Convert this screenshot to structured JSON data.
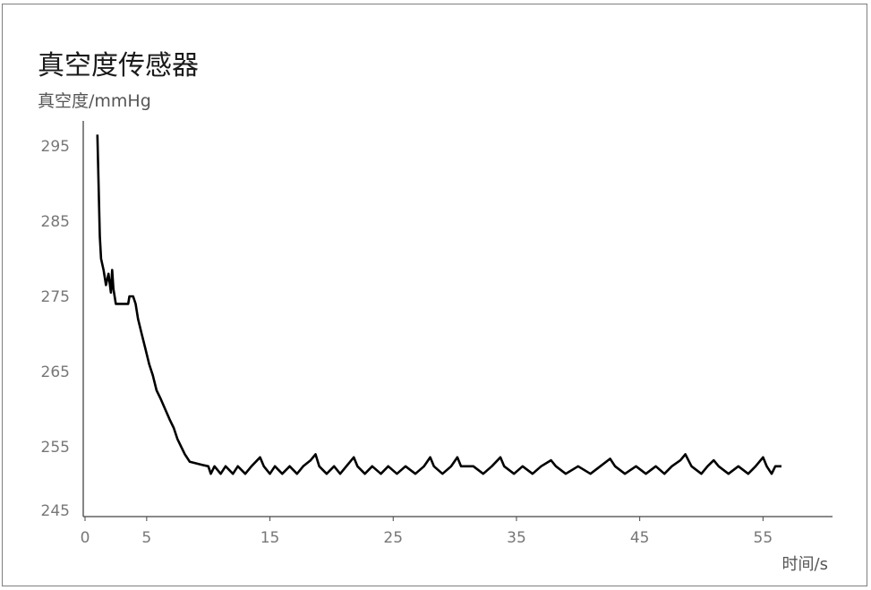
{
  "chart_data": {
    "type": "line",
    "title": "真空度传感器",
    "ylabel": "真空度/mmHg",
    "xlabel": "时间/s",
    "xlim": [
      0,
      60
    ],
    "ylim": [
      245,
      297
    ],
    "x_ticks": [
      0,
      5,
      15,
      25,
      35,
      45,
      55
    ],
    "y_ticks": [
      245,
      255,
      265,
      275,
      285,
      295
    ],
    "grid": false,
    "series": [
      {
        "color": "#000000",
        "points": [
          [
            1.0,
            296.5
          ],
          [
            1.1,
            290
          ],
          [
            1.2,
            283
          ],
          [
            1.3,
            280
          ],
          [
            1.5,
            278.5
          ],
          [
            1.7,
            276.5
          ],
          [
            1.9,
            278
          ],
          [
            2.1,
            275.5
          ],
          [
            2.2,
            278.5
          ],
          [
            2.3,
            276
          ],
          [
            2.5,
            274
          ],
          [
            3.0,
            274
          ],
          [
            3.5,
            274
          ],
          [
            3.6,
            275
          ],
          [
            3.9,
            275
          ],
          [
            4.1,
            274
          ],
          [
            4.3,
            272
          ],
          [
            4.6,
            270
          ],
          [
            4.9,
            268
          ],
          [
            5.2,
            266
          ],
          [
            5.5,
            264.5
          ],
          [
            5.8,
            262.5
          ],
          [
            6.1,
            261.5
          ],
          [
            6.5,
            260
          ],
          [
            6.9,
            258.5
          ],
          [
            7.2,
            257.5
          ],
          [
            7.5,
            256
          ],
          [
            7.8,
            255
          ],
          [
            8.1,
            254
          ],
          [
            8.5,
            253
          ],
          [
            9.0,
            252.8
          ],
          [
            9.5,
            252.6
          ],
          [
            10.0,
            252.4
          ],
          [
            10.2,
            251.4
          ],
          [
            10.5,
            252.4
          ],
          [
            11.0,
            251.4
          ],
          [
            11.4,
            252.4
          ],
          [
            12.0,
            251.4
          ],
          [
            12.4,
            252.4
          ],
          [
            13.0,
            251.4
          ],
          [
            13.5,
            252.4
          ],
          [
            14.2,
            253.6
          ],
          [
            14.5,
            252.4
          ],
          [
            15.0,
            251.4
          ],
          [
            15.4,
            252.4
          ],
          [
            16.0,
            251.4
          ],
          [
            16.6,
            252.4
          ],
          [
            17.2,
            251.4
          ],
          [
            17.7,
            252.4
          ],
          [
            18.3,
            253.2
          ],
          [
            18.7,
            254
          ],
          [
            19.0,
            252.4
          ],
          [
            19.6,
            251.4
          ],
          [
            20.2,
            252.4
          ],
          [
            20.7,
            251.4
          ],
          [
            21.2,
            252.4
          ],
          [
            21.8,
            253.6
          ],
          [
            22.1,
            252.4
          ],
          [
            22.7,
            251.4
          ],
          [
            23.3,
            252.4
          ],
          [
            24.0,
            251.4
          ],
          [
            24.6,
            252.4
          ],
          [
            25.3,
            251.4
          ],
          [
            26.0,
            252.4
          ],
          [
            26.8,
            251.4
          ],
          [
            27.5,
            252.4
          ],
          [
            28.0,
            253.6
          ],
          [
            28.3,
            252.4
          ],
          [
            29.0,
            251.4
          ],
          [
            29.7,
            252.4
          ],
          [
            30.2,
            253.6
          ],
          [
            30.5,
            252.4
          ],
          [
            31.5,
            252.4
          ],
          [
            32.3,
            251.4
          ],
          [
            33.0,
            252.4
          ],
          [
            33.7,
            253.6
          ],
          [
            34.0,
            252.4
          ],
          [
            34.8,
            251.4
          ],
          [
            35.5,
            252.4
          ],
          [
            36.3,
            251.4
          ],
          [
            37.0,
            252.4
          ],
          [
            37.8,
            253.2
          ],
          [
            38.2,
            252.4
          ],
          [
            39.0,
            251.4
          ],
          [
            40.0,
            252.4
          ],
          [
            41.0,
            251.4
          ],
          [
            41.8,
            252.4
          ],
          [
            42.6,
            253.4
          ],
          [
            43.0,
            252.4
          ],
          [
            43.8,
            251.4
          ],
          [
            44.7,
            252.4
          ],
          [
            45.5,
            251.4
          ],
          [
            46.3,
            252.4
          ],
          [
            47.0,
            251.4
          ],
          [
            47.6,
            252.4
          ],
          [
            48.3,
            253.2
          ],
          [
            48.7,
            254
          ],
          [
            49.2,
            252.4
          ],
          [
            50.0,
            251.4
          ],
          [
            50.5,
            252.4
          ],
          [
            51.0,
            253.2
          ],
          [
            51.4,
            252.4
          ],
          [
            52.2,
            251.4
          ],
          [
            53.0,
            252.4
          ],
          [
            53.8,
            251.4
          ],
          [
            54.4,
            252.4
          ],
          [
            55.0,
            253.6
          ],
          [
            55.3,
            252.4
          ],
          [
            55.7,
            251.4
          ],
          [
            56.0,
            252.4
          ],
          [
            56.5,
            252.4
          ]
        ]
      }
    ]
  }
}
